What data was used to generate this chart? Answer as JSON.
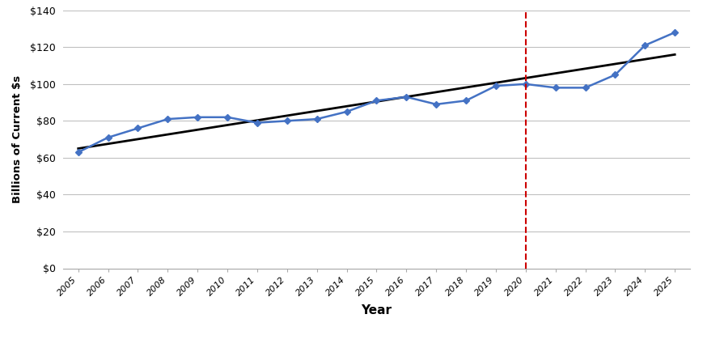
{
  "years": [
    2005,
    2006,
    2007,
    2008,
    2009,
    2010,
    2011,
    2012,
    2013,
    2014,
    2015,
    2016,
    2017,
    2018,
    2019,
    2020,
    2021,
    2022,
    2023,
    2024,
    2025
  ],
  "values": [
    63,
    71,
    76,
    81,
    82,
    82,
    79,
    80,
    81,
    85,
    91,
    93,
    89,
    91,
    99,
    100,
    98,
    98,
    105,
    121,
    128
  ],
  "trend_years": [
    2005,
    2025
  ],
  "trend_values": [
    65,
    116
  ],
  "vline_x": 2020,
  "line_color": "#4472C4",
  "trend_color": "#000000",
  "vline_color": "#CC0000",
  "marker": "D",
  "marker_size": 4,
  "ylim": [
    0,
    140
  ],
  "ytick_step": 20,
  "ylabel": "Billions of Current $s",
  "xlabel": "Year",
  "background_color": "#ffffff",
  "grid_color": "#c0c0c0",
  "spine_color": "#888888"
}
